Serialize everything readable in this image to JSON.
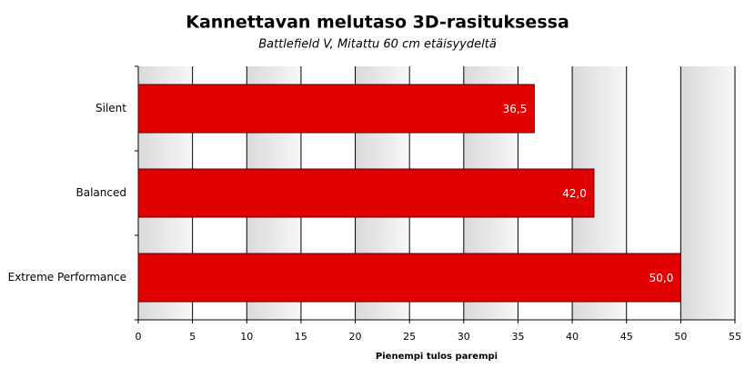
{
  "chart_data": {
    "type": "barh",
    "title": "Kannettavan melutaso 3D-rasituksessa",
    "subtitle": "Battlefield V, Mitattu 60 cm etäisyydeltä",
    "x_label": "Pienempi tulos parempi",
    "categories": [
      "Silent",
      "Balanced",
      "Extreme Performance"
    ],
    "values": [
      36.5,
      42.0,
      50.0
    ],
    "value_labels": [
      "36,5",
      "42,0",
      "50,0"
    ],
    "color": "#e00000",
    "xlim": [
      0,
      55
    ],
    "xticks": [
      0,
      5,
      10,
      15,
      20,
      25,
      30,
      35,
      40,
      45,
      50,
      55
    ],
    "grid": true
  }
}
